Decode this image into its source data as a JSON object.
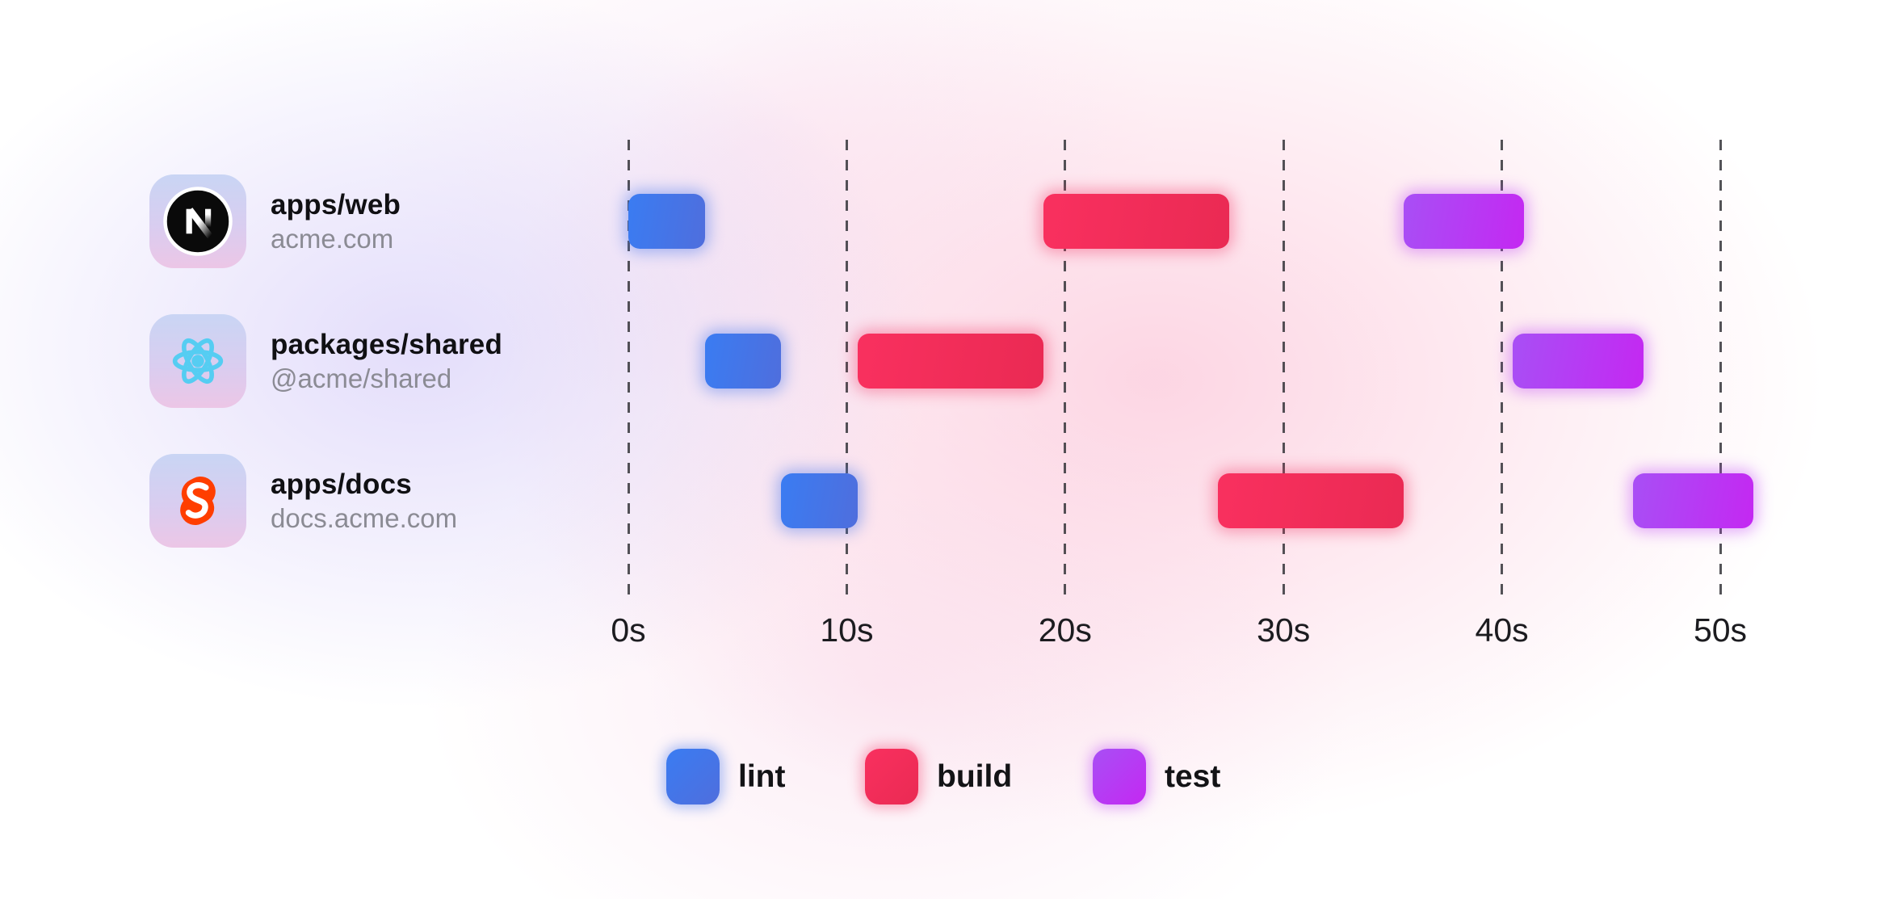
{
  "packages": [
    {
      "name": "apps/web",
      "subtitle": "acme.com",
      "icon": "nextjs-logo"
    },
    {
      "name": "packages/shared",
      "subtitle": "@acme/shared",
      "icon": "react-logo"
    },
    {
      "name": "apps/docs",
      "subtitle": "docs.acme.com",
      "icon": "svelte-logo"
    }
  ],
  "legend": {
    "items": [
      {
        "label": "lint",
        "task": "lint"
      },
      {
        "label": "build",
        "task": "build"
      },
      {
        "label": "test",
        "task": "test"
      }
    ]
  },
  "chart_data": {
    "type": "gantt",
    "time_unit": "seconds",
    "x_axis": {
      "xlim": [
        0,
        52
      ],
      "gridlines": "dashed-vertical",
      "ticks": [
        {
          "label": "0s",
          "value": 0
        },
        {
          "label": "10s",
          "value": 10
        },
        {
          "label": "20s",
          "value": 20
        },
        {
          "label": "30s",
          "value": 30
        },
        {
          "label": "40s",
          "value": 40
        },
        {
          "label": "50s",
          "value": 50
        }
      ]
    },
    "rows": [
      {
        "id": "apps/web",
        "tasks": [
          {
            "name": "lint",
            "start": 0,
            "end": 3.5
          },
          {
            "name": "build",
            "start": 19,
            "end": 27.5
          },
          {
            "name": "test",
            "start": 35.5,
            "end": 41
          }
        ]
      },
      {
        "id": "packages/shared",
        "tasks": [
          {
            "name": "lint",
            "start": 3.5,
            "end": 7
          },
          {
            "name": "build",
            "start": 10.5,
            "end": 19
          },
          {
            "name": "test",
            "start": 40.5,
            "end": 46.5
          }
        ]
      },
      {
        "id": "apps/docs",
        "tasks": [
          {
            "name": "lint",
            "start": 7,
            "end": 10.5
          },
          {
            "name": "build",
            "start": 27,
            "end": 35.5
          },
          {
            "name": "test",
            "start": 46,
            "end": 51.5
          }
        ]
      }
    ],
    "task_colors": {
      "lint": {
        "from": "#3a7cf2",
        "to": "#4f6edd",
        "glow": "rgba(72,118,236,0.45)"
      },
      "build": {
        "from": "#f9305f",
        "to": "#ea2a53",
        "glow": "rgba(243,45,95,0.40)"
      },
      "test": {
        "from": "#a84ff5",
        "to": "#c428f2",
        "glow": "rgba(189,62,245,0.42)"
      }
    }
  }
}
